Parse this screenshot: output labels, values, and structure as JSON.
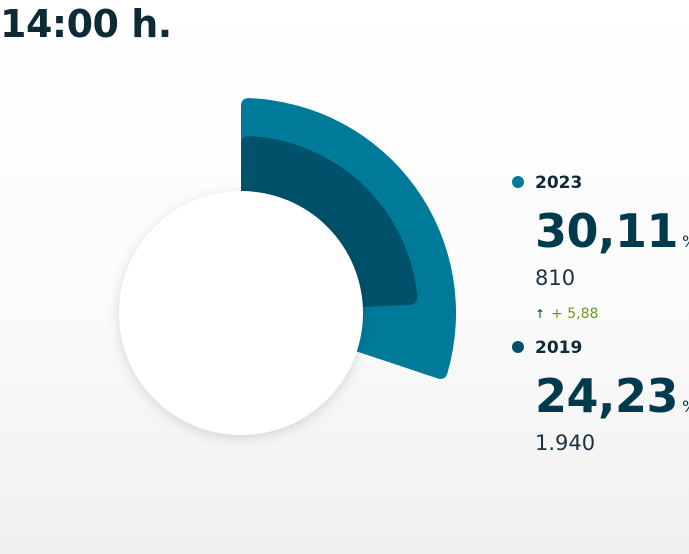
{
  "header": {
    "time": "14:00 h."
  },
  "colors": {
    "series_2023": "#007a99",
    "series_2019": "#00516a",
    "change_positive": "#6a9a1f"
  },
  "chart_data": {
    "type": "pie",
    "title": "",
    "series": [
      {
        "name": "2023",
        "percent_value": 30.11,
        "percent": "30,11",
        "unit": "%",
        "votes": "810",
        "change": "+ 5,88"
      },
      {
        "name": "2019",
        "percent_value": 24.23,
        "percent": "24,23",
        "unit": "%",
        "votes": "1.940"
      }
    ]
  }
}
